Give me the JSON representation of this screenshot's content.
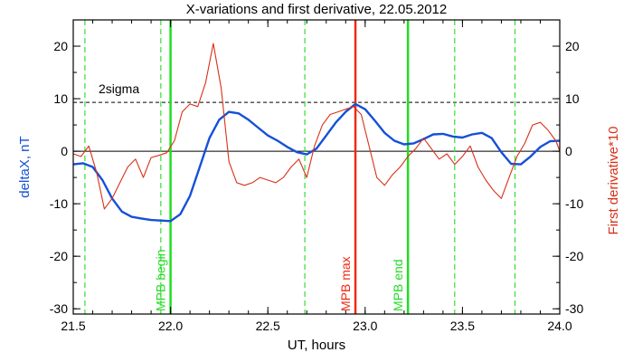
{
  "chart_data": {
    "type": "line",
    "title": "X-variations and first derivative, 22.05.2012",
    "xlabel": "UT, hours",
    "ylabel_left": "deltaX, nT",
    "ylabel_right": "First derivative*10",
    "xlim": [
      21.5,
      24.0
    ],
    "ylim": [
      -31,
      25
    ],
    "x_ticks": [
      "21.5",
      "22.0",
      "22.5",
      "23.0",
      "23.5",
      "24.0"
    ],
    "y_ticks_left": [
      "20",
      "10",
      "0",
      "-10",
      "-20",
      "-30"
    ],
    "y_ticks_right": [
      "20",
      "10",
      "0",
      "-10",
      "-20",
      "-30"
    ],
    "sigma_level": 9.3,
    "sigma_label": "2sigma",
    "zero_line": 0,
    "colors": {
      "deltaX": "#1550d8",
      "derivative": "#d83018",
      "mpb_bounds": "#22dd22",
      "mpb_max": "#ee2a10",
      "dashed_green": "#33dd33",
      "left_label": "#1550d8",
      "right_label": "#d83018"
    },
    "vertical_lines": [
      {
        "x": 21.56,
        "style": "dashed",
        "label": ""
      },
      {
        "x": 21.95,
        "style": "dashed",
        "label": ""
      },
      {
        "x": 22.0,
        "style": "solid",
        "label": "MPB begin"
      },
      {
        "x": 22.69,
        "style": "dashed",
        "label": ""
      },
      {
        "x": 22.95,
        "style": "solid-red",
        "label": "MPB max"
      },
      {
        "x": 23.22,
        "style": "solid",
        "label": "MPB end"
      },
      {
        "x": 23.46,
        "style": "dashed",
        "label": ""
      },
      {
        "x": 23.77,
        "style": "dashed",
        "label": ""
      }
    ],
    "series": [
      {
        "name": "deltaX, nT",
        "x": [
          21.5,
          21.55,
          21.6,
          21.65,
          21.7,
          21.75,
          21.8,
          21.85,
          21.9,
          21.95,
          22.0,
          22.05,
          22.1,
          22.15,
          22.2,
          22.25,
          22.3,
          22.35,
          22.4,
          22.45,
          22.5,
          22.55,
          22.6,
          22.65,
          22.7,
          22.75,
          22.8,
          22.85,
          22.9,
          22.95,
          23.0,
          23.05,
          23.1,
          23.15,
          23.2,
          23.25,
          23.3,
          23.35,
          23.4,
          23.45,
          23.5,
          23.55,
          23.6,
          23.65,
          23.7,
          23.75,
          23.8,
          23.85,
          23.9,
          23.95,
          24.0
        ],
        "values": [
          -2.5,
          -2.3,
          -3.0,
          -5.5,
          -9.0,
          -11.5,
          -12.5,
          -12.8,
          -13.1,
          -13.2,
          -13.3,
          -12.0,
          -8.5,
          -3.0,
          2.5,
          6.0,
          7.5,
          7.2,
          6.0,
          4.5,
          3.0,
          2.0,
          0.8,
          -0.2,
          -0.6,
          0.5,
          3.0,
          5.5,
          7.5,
          9.0,
          8.0,
          5.8,
          3.5,
          2.0,
          1.3,
          1.5,
          2.3,
          3.2,
          3.3,
          2.8,
          2.6,
          3.2,
          3.5,
          2.5,
          -0.2,
          -2.4,
          -2.5,
          -1.0,
          0.8,
          1.9,
          2.0
        ]
      },
      {
        "name": "First derivative*10",
        "x": [
          21.5,
          21.54,
          21.58,
          21.62,
          21.66,
          21.7,
          21.74,
          21.78,
          21.82,
          21.86,
          21.9,
          21.94,
          21.98,
          22.02,
          22.06,
          22.1,
          22.14,
          22.18,
          22.22,
          22.26,
          22.3,
          22.34,
          22.38,
          22.42,
          22.46,
          22.5,
          22.54,
          22.58,
          22.62,
          22.66,
          22.7,
          22.74,
          22.78,
          22.82,
          22.86,
          22.9,
          22.94,
          22.98,
          23.02,
          23.06,
          23.1,
          23.14,
          23.18,
          23.22,
          23.26,
          23.3,
          23.34,
          23.38,
          23.42,
          23.46,
          23.5,
          23.54,
          23.58,
          23.62,
          23.66,
          23.7,
          23.74,
          23.78,
          23.82,
          23.86,
          23.9,
          23.94,
          23.98,
          24.0
        ],
        "values": [
          -0.5,
          -1.0,
          1.0,
          -4.0,
          -11.0,
          -9.0,
          -6.0,
          -3.0,
          -1.5,
          -5.0,
          -1.2,
          -0.8,
          -0.3,
          2.0,
          7.5,
          9.0,
          8.5,
          13.0,
          20.5,
          12.0,
          -2.0,
          -6.0,
          -6.5,
          -6.0,
          -5.0,
          -5.5,
          -6.0,
          -5.0,
          -3.0,
          -1.5,
          -5.0,
          1.0,
          5.0,
          7.0,
          7.5,
          8.0,
          8.5,
          7.0,
          1.0,
          -5.0,
          -6.5,
          -4.5,
          -3.0,
          -1.0,
          0.5,
          2.5,
          0.5,
          -1.5,
          -0.5,
          -2.5,
          -1.0,
          1.0,
          -3.0,
          -5.5,
          -7.5,
          -9.0,
          -5.0,
          -1.0,
          1.5,
          5.0,
          5.5,
          4.0,
          2.0,
          0.0
        ]
      }
    ]
  }
}
